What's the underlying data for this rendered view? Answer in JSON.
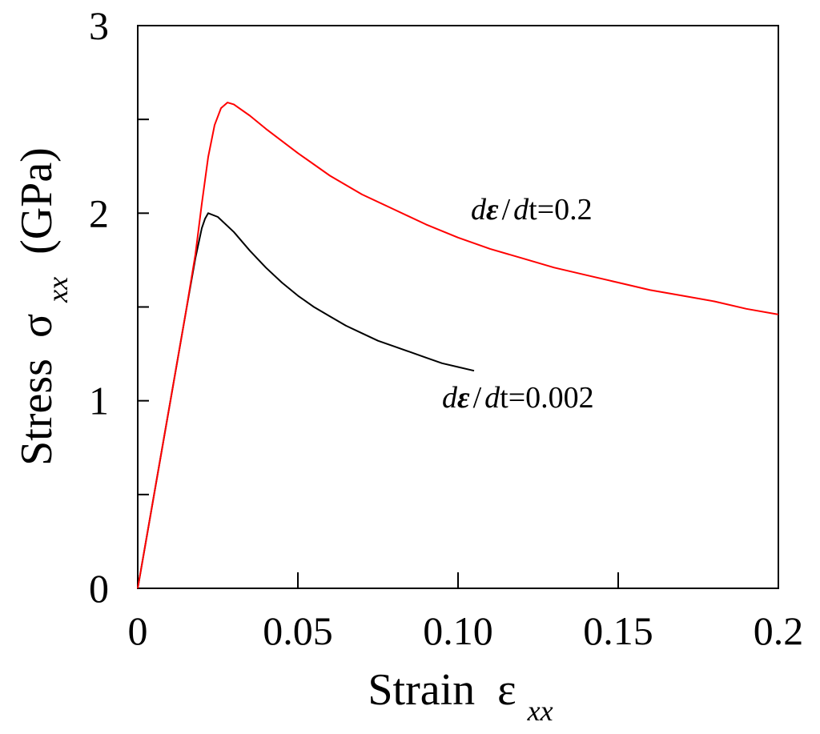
{
  "chart_data": {
    "type": "line",
    "title": "",
    "xlabel": "Strain",
    "xlabel_symbol": "ε",
    "xlabel_sub": "xx",
    "ylabel": "Stress",
    "ylabel_symbol": "σ",
    "ylabel_sub": "xx",
    "ylabel_unit": "(GPa)",
    "xlim": [
      0,
      0.2
    ],
    "ylim": [
      0,
      3
    ],
    "xticks": [
      0,
      0.05,
      0.1,
      0.15,
      0.2
    ],
    "xtick_labels": [
      "0",
      "0.05",
      "0.10",
      "0.15",
      "0.2"
    ],
    "yticks": [
      0,
      1,
      2,
      3
    ],
    "ytick_labels": [
      "0",
      "1",
      "2",
      "3"
    ],
    "grid": false,
    "series": [
      {
        "name": "dε/dt=0.002",
        "color": "#000000",
        "label_parts": [
          "d",
          "ε",
          "/",
          "d",
          "t=0.002"
        ],
        "x": [
          0,
          0.005,
          0.01,
          0.015,
          0.018,
          0.02,
          0.021,
          0.022,
          0.025,
          0.03,
          0.035,
          0.04,
          0.045,
          0.05,
          0.055,
          0.06,
          0.065,
          0.07,
          0.075,
          0.08,
          0.085,
          0.09,
          0.095,
          0.1,
          0.105
        ],
        "y": [
          0,
          0.49,
          0.98,
          1.47,
          1.76,
          1.92,
          1.97,
          2.0,
          1.98,
          1.9,
          1.8,
          1.71,
          1.63,
          1.56,
          1.5,
          1.45,
          1.4,
          1.36,
          1.32,
          1.29,
          1.26,
          1.23,
          1.2,
          1.18,
          1.16
        ]
      },
      {
        "name": "dε/dt=0.2",
        "color": "#ff0000",
        "label_parts": [
          "d",
          "ε",
          "/",
          "d",
          "t=0.2"
        ],
        "x": [
          0,
          0.005,
          0.01,
          0.015,
          0.018,
          0.02,
          0.022,
          0.024,
          0.026,
          0.028,
          0.03,
          0.035,
          0.04,
          0.05,
          0.06,
          0.07,
          0.08,
          0.09,
          0.1,
          0.11,
          0.12,
          0.13,
          0.14,
          0.15,
          0.16,
          0.17,
          0.18,
          0.19,
          0.2
        ],
        "y": [
          0,
          0.49,
          0.98,
          1.47,
          1.78,
          2.05,
          2.3,
          2.47,
          2.56,
          2.59,
          2.58,
          2.52,
          2.45,
          2.32,
          2.2,
          2.1,
          2.02,
          1.94,
          1.87,
          1.81,
          1.76,
          1.71,
          1.67,
          1.63,
          1.59,
          1.56,
          1.53,
          1.49,
          1.46
        ]
      }
    ]
  }
}
